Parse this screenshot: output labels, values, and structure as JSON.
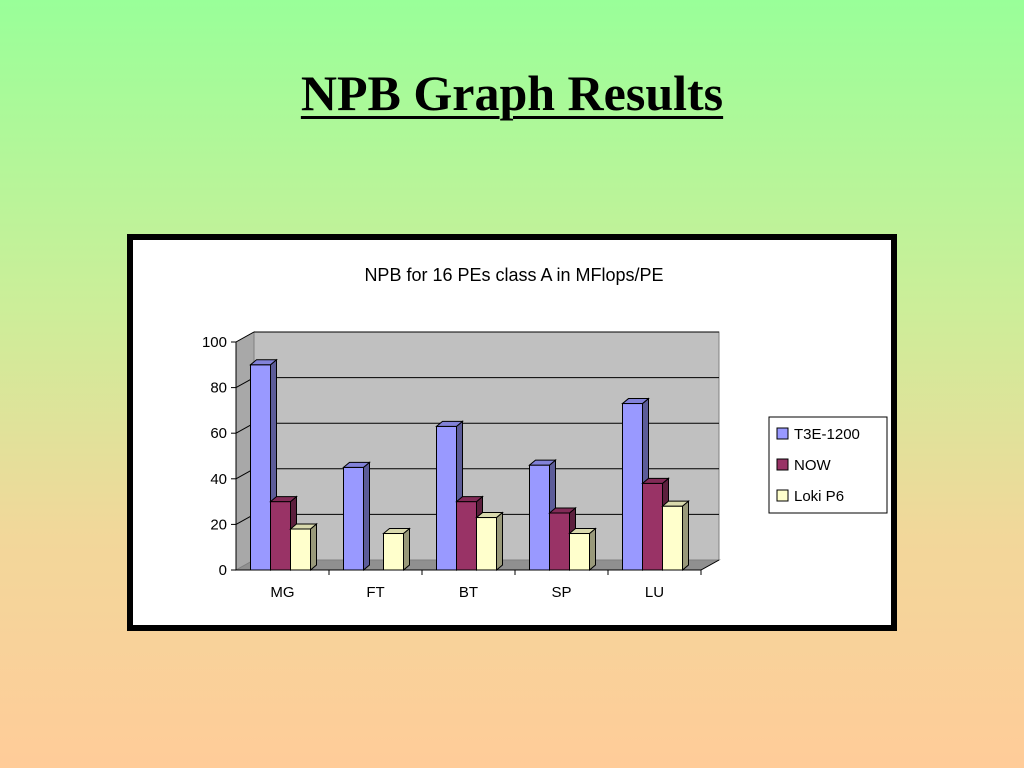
{
  "slide": {
    "title": "NPB Graph Results"
  },
  "colors": {
    "T3E-1200": "#9999ff",
    "NOW": "#993366",
    "Loki P6": "#ffffcc"
  },
  "chart_data": {
    "type": "bar",
    "title": "NPB for 16 PEs class A in MFlops/PE",
    "xlabel": "",
    "ylabel": "",
    "categories": [
      "MG",
      "FT",
      "BT",
      "SP",
      "LU"
    ],
    "series": [
      {
        "name": "T3E-1200",
        "values": [
          90,
          45,
          63,
          46,
          73
        ]
      },
      {
        "name": "NOW",
        "values": [
          30,
          0,
          30,
          25,
          38
        ]
      },
      {
        "name": "Loki P6",
        "values": [
          18,
          16,
          23,
          16,
          28
        ]
      }
    ],
    "ylim": [
      0,
      100
    ],
    "yticks": [
      0,
      20,
      40,
      60,
      80,
      100
    ],
    "grid": true,
    "legend": "right",
    "style": "3d-column"
  }
}
